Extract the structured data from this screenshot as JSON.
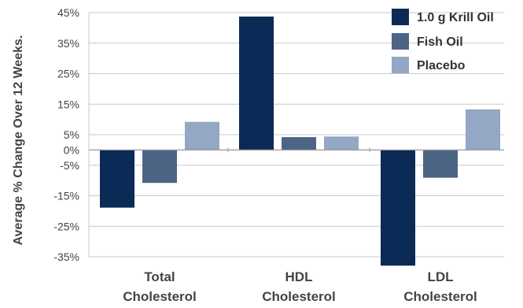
{
  "chart_data": {
    "type": "bar",
    "ylabel": "Average % Change Over 12 Weeks.",
    "categories": [
      [
        "Total",
        "Cholesterol"
      ],
      [
        "HDL",
        "Cholesterol"
      ],
      [
        "LDL",
        "Cholesterol"
      ]
    ],
    "series": [
      {
        "name": "1.0 g Krill Oil",
        "color": "#0b2a55",
        "values": [
          -18.9,
          43.7,
          -37.9
        ]
      },
      {
        "name": "Fish Oil",
        "color": "#4d6584",
        "values": [
          -10.8,
          4.2,
          -9.1
        ]
      },
      {
        "name": "Placebo",
        "color": "#94a7c4",
        "values": [
          9.2,
          4.4,
          13.3
        ]
      }
    ],
    "ylim": [
      -35,
      45
    ],
    "yticks": [
      45,
      35,
      25,
      15,
      5,
      0,
      -5,
      -15,
      -25,
      -35
    ],
    "ytick_labels": [
      "45%",
      "35%",
      "25%",
      "15%",
      "5%",
      "0%",
      "-5%",
      "-15%",
      "-25%",
      "-35%"
    ],
    "grid": true,
    "legend_position": "top-right"
  }
}
